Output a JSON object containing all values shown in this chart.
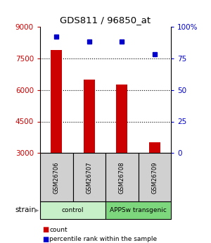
{
  "title": "GDS811 / 96850_at",
  "samples": [
    "GSM26706",
    "GSM26707",
    "GSM26708",
    "GSM26709"
  ],
  "bar_values": [
    7900,
    6500,
    6250,
    3500
  ],
  "dot_values": [
    92,
    88,
    88,
    78
  ],
  "groups": [
    {
      "label": "control",
      "samples": [
        0,
        1
      ],
      "color": "#c8f0c8"
    },
    {
      "label": "APPSw transgenic",
      "samples": [
        2,
        3
      ],
      "color": "#7dd87d"
    }
  ],
  "ylim_left": [
    3000,
    9000
  ],
  "ylim_right": [
    0,
    100
  ],
  "yticks_left": [
    3000,
    4500,
    6000,
    7500,
    9000
  ],
  "yticks_right": [
    0,
    25,
    50,
    75,
    100
  ],
  "ytick_labels_right": [
    "0",
    "25",
    "50",
    "75",
    "100%"
  ],
  "bar_color": "#cc0000",
  "dot_color": "#0000cc",
  "label_color_left": "#cc0000",
  "label_color_right": "#0000cc",
  "legend_items": [
    {
      "label": "count",
      "color": "#cc0000"
    },
    {
      "label": "percentile rank within the sample",
      "color": "#0000cc"
    }
  ],
  "strain_label": "strain",
  "sample_box_color": "#d0d0d0",
  "bar_width": 0.35,
  "dot_size": 5
}
